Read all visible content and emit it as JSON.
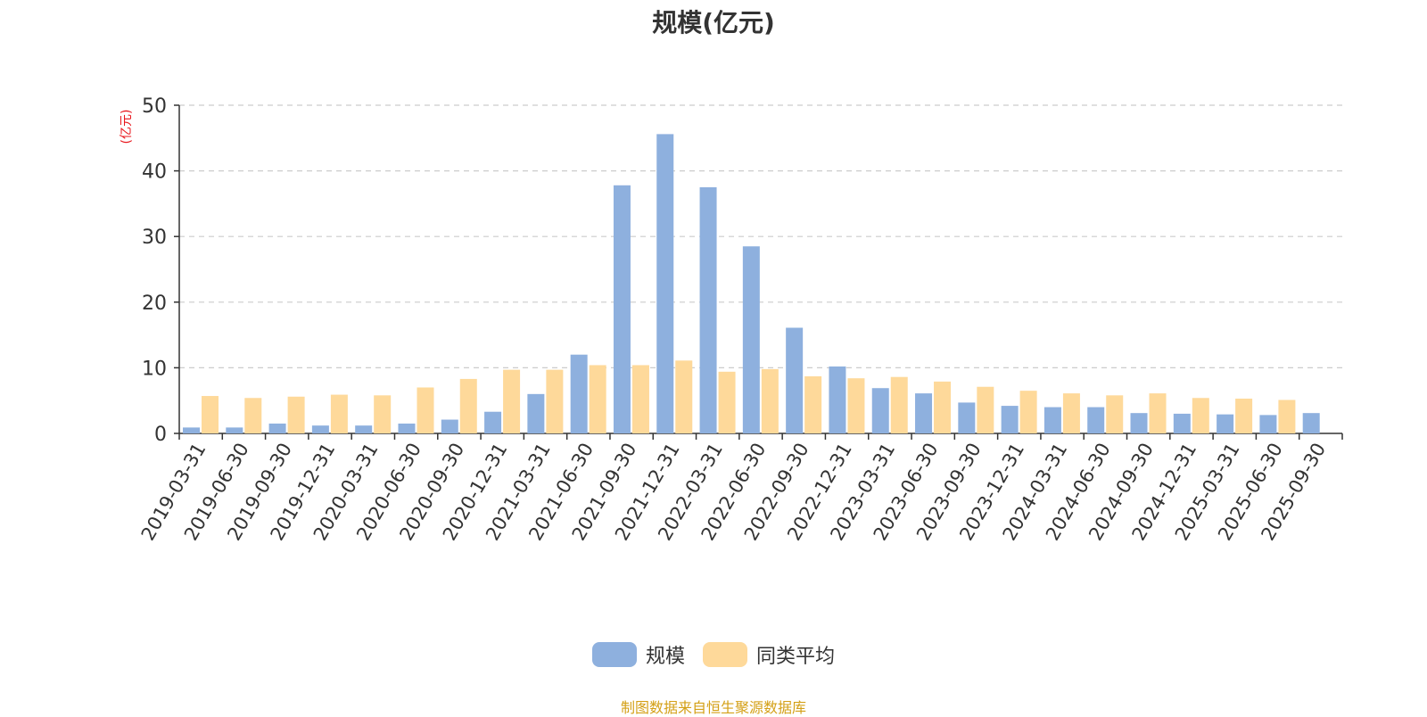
{
  "title": "规模(亿元)",
  "source": "制图数据来自恒生聚源数据库",
  "colors": {
    "series1": "#8eb0de",
    "series2": "#fed99a",
    "unit": "#e8151b",
    "axis": "#333333",
    "grid": "#cccccc"
  },
  "chart_data": {
    "type": "bar",
    "ylabel": "(亿元)",
    "ylim": [
      0,
      50
    ],
    "yticks": [
      0,
      10,
      20,
      30,
      40,
      50
    ],
    "grid": true,
    "legend_position": "bottom-center",
    "categories": [
      "2019-03-31",
      "2019-06-30",
      "2019-09-30",
      "2019-12-31",
      "2020-03-31",
      "2020-06-30",
      "2020-09-30",
      "2020-12-31",
      "2021-03-31",
      "2021-06-30",
      "2021-09-30",
      "2021-12-31",
      "2022-03-31",
      "2022-06-30",
      "2022-09-30",
      "2022-12-31",
      "2023-03-31",
      "2023-06-30",
      "2023-09-30",
      "2023-12-31",
      "2024-03-31",
      "2024-06-30",
      "2024-09-30",
      "2024-12-31",
      "2025-03-31",
      "2025-06-30",
      "2025-09-30"
    ],
    "series": [
      {
        "name": "规模",
        "values": [
          0.9,
          0.9,
          1.5,
          1.2,
          1.2,
          1.5,
          2.1,
          3.3,
          6.0,
          12.0,
          37.8,
          45.6,
          37.5,
          28.5,
          16.1,
          10.2,
          6.9,
          6.1,
          4.7,
          4.2,
          4.0,
          4.0,
          3.1,
          3.0,
          2.9,
          2.8,
          3.1
        ]
      },
      {
        "name": "同类平均",
        "values": [
          5.7,
          5.4,
          5.6,
          5.9,
          5.8,
          7.0,
          8.3,
          9.7,
          9.7,
          10.4,
          10.4,
          11.1,
          9.4,
          9.8,
          8.7,
          8.4,
          8.6,
          7.9,
          7.1,
          6.5,
          6.1,
          5.8,
          6.1,
          5.4,
          5.3,
          5.1,
          null
        ]
      }
    ]
  }
}
